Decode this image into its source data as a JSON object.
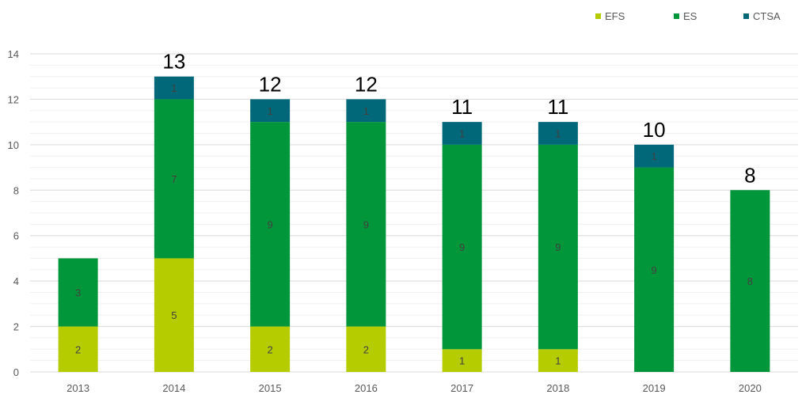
{
  "chart_data": {
    "type": "bar",
    "stacked": true,
    "categories": [
      "2013",
      "2014",
      "2015",
      "2016",
      "2017",
      "2018",
      "2019",
      "2020"
    ],
    "series": [
      {
        "name": "EFS",
        "color": "#b5cc00",
        "values": [
          2,
          5,
          2,
          2,
          1,
          1,
          0,
          0
        ]
      },
      {
        "name": "ES",
        "color": "#009639",
        "values": [
          3,
          7,
          9,
          9,
          9,
          9,
          9,
          8
        ]
      },
      {
        "name": "CTSA",
        "color": "#006878",
        "values": [
          0,
          1,
          1,
          1,
          1,
          1,
          1,
          0
        ]
      }
    ],
    "segment_labels": [
      [
        "2",
        "5",
        "2",
        "2",
        "1",
        "1",
        "",
        ""
      ],
      [
        "3",
        "7",
        "9",
        "9",
        "9",
        "9",
        "9",
        "8"
      ],
      [
        "",
        "1",
        "1",
        "1",
        "1",
        "1",
        "1",
        ""
      ]
    ],
    "totals": [
      "",
      "13",
      "12",
      "12",
      "11",
      "11",
      "10",
      "8"
    ],
    "ylim": [
      0,
      14
    ],
    "yticks": [
      "0",
      "2",
      "4",
      "6",
      "8",
      "10",
      "12",
      "14"
    ],
    "minor_gridlines": true,
    "legend_position": "top-right",
    "title": "",
    "xlabel": "",
    "ylabel": ""
  }
}
